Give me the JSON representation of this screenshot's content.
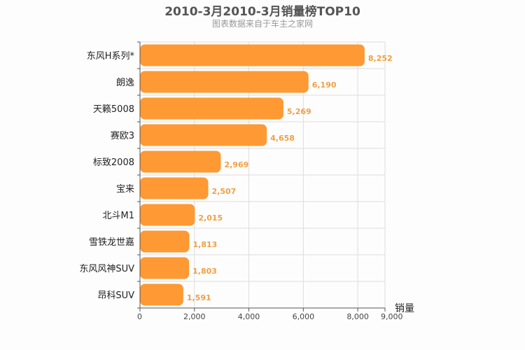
{
  "chart_data": {
    "type": "bar",
    "orientation": "horizontal",
    "title": "2010-3月2010-3月销量榜TOP10",
    "subtitle": "图表数据来自于车主之家网",
    "categories": [
      "东风H系列*",
      "朗逸",
      "天籁5008",
      "赛欧3",
      "标致2008",
      "宝来",
      "北斗M1",
      "雪铁龙世嘉",
      "东风风神SUV",
      "昂科SUV"
    ],
    "values": [
      8252,
      6190,
      5269,
      4658,
      2969,
      2507,
      2015,
      1813,
      1803,
      1591
    ],
    "value_labels": [
      "8,252",
      "6,190",
      "5,269",
      "4,658",
      "2,969",
      "2,507",
      "2,015",
      "1,813",
      "1,803",
      "1,591"
    ],
    "xlim": [
      0,
      9000
    ],
    "x_ticks": [
      0,
      2000,
      4000,
      6000,
      8000,
      9000
    ],
    "x_tick_labels": [
      "0",
      "2,000",
      "4,000",
      "6,000",
      "8,000",
      "9,000"
    ],
    "xlabel": "销量",
    "grid": true,
    "colors": {
      "bar": "#ff9933",
      "value_label": "#f0a045",
      "grid": "#dddddd",
      "axis": "#555555"
    }
  }
}
